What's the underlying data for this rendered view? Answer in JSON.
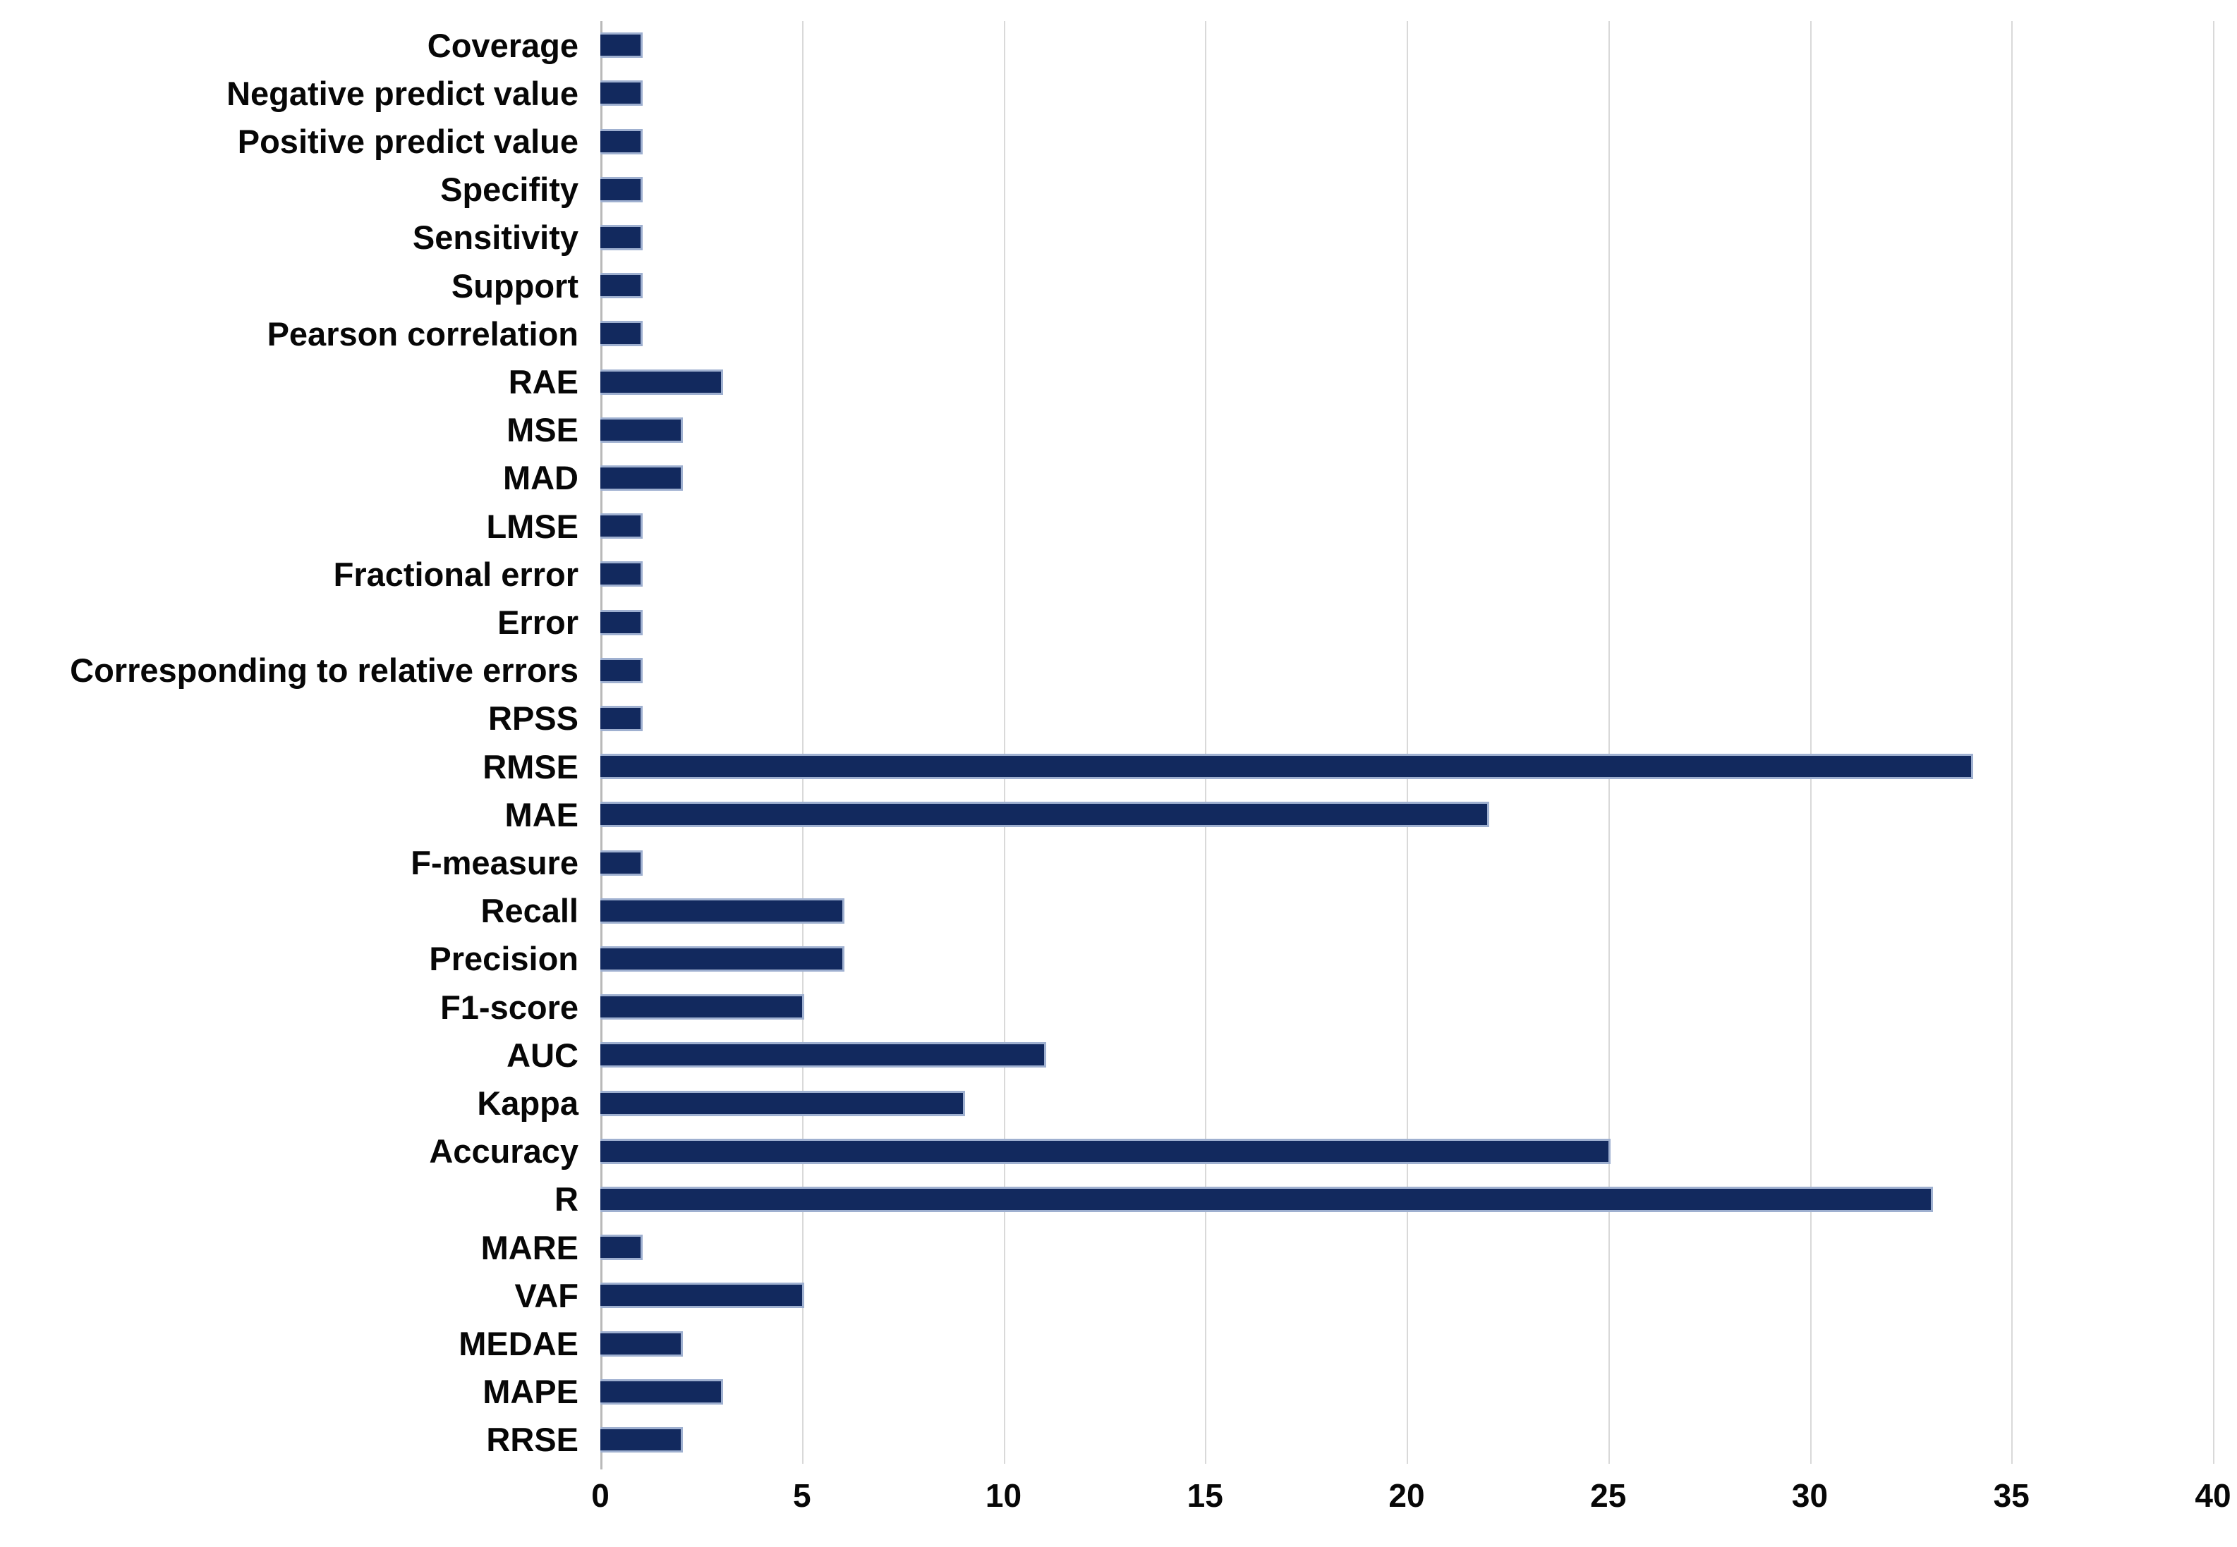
{
  "chart_data": {
    "type": "bar",
    "orientation": "horizontal",
    "title": "",
    "xlabel": "",
    "ylabel": "",
    "categories": [
      "Coverage",
      "Negative predict value",
      "Positive predict value",
      "Specifity",
      "Sensitivity",
      "Support",
      "Pearson correlation",
      "RAE",
      "MSE",
      "MAD",
      "LMSE",
      "Fractional error",
      "Error",
      "Corresponding to relative errors",
      "RPSS",
      "RMSE",
      "MAE",
      "F-measure",
      "Recall",
      "Precision",
      "F1-score",
      "AUC",
      "Kappa",
      "Accuracy",
      "R",
      "MARE",
      "VAF",
      "MEDAE",
      "MAPE",
      "RRSE"
    ],
    "values": [
      1,
      1,
      1,
      1,
      1,
      1,
      1,
      3,
      2,
      2,
      1,
      1,
      1,
      1,
      1,
      34,
      22,
      1,
      6,
      6,
      5,
      11,
      9,
      25,
      33,
      1,
      5,
      2,
      3,
      2
    ],
    "xlim": [
      0,
      40
    ],
    "x_ticks": [
      0,
      5,
      10,
      15,
      20,
      25,
      30,
      35,
      40
    ],
    "grid": "vertical-only",
    "legend": "none",
    "colors": {
      "bar_fill": "#12295e",
      "bar_border": "#9fb0d0",
      "gridline": "#d9d9d9",
      "axis_line": "#b9b9b9",
      "label_text": "#070707"
    }
  }
}
